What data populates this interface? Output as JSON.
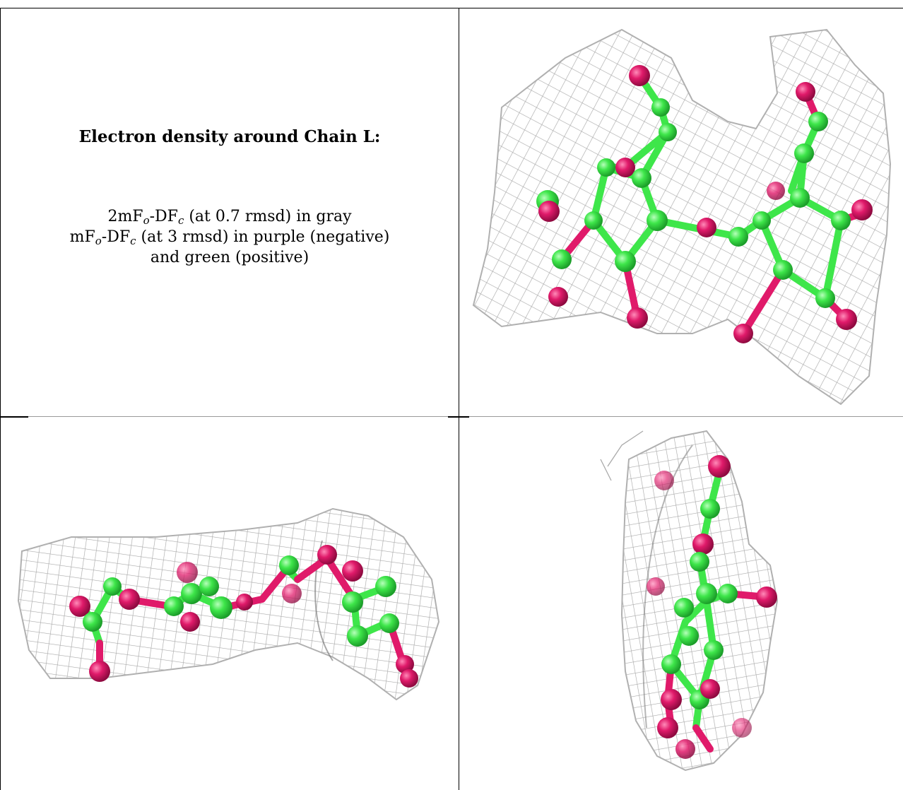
{
  "figure": {
    "title": "Electron density around Chain L:",
    "legend": {
      "line1": {
        "prefix": "2mF",
        "sub1": "o",
        "mid": "-DF",
        "sub2": "c",
        "suffix": " (at 0.7 rmsd) in gray"
      },
      "line2": {
        "prefix": "mF",
        "sub1": "o",
        "mid": "-DF",
        "sub2": "c",
        "suffix": " (at 3 rmsd) in purple (negative)"
      },
      "line3": "and green (positive)"
    },
    "colors": {
      "mesh": "#a9a9a9",
      "carbon": "#3ee64a",
      "oxygen": "#e01a6a",
      "border": "#000000"
    },
    "views": [
      {
        "name": "top-right-view"
      },
      {
        "name": "bottom-left-view"
      },
      {
        "name": "bottom-right-view"
      }
    ]
  }
}
